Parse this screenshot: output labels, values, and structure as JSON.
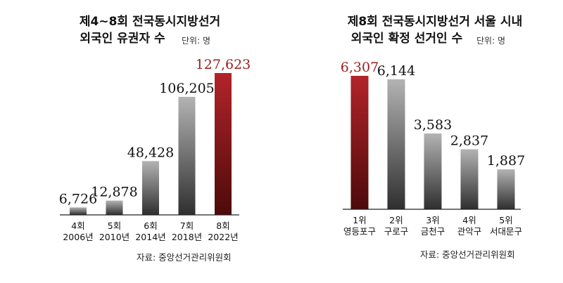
{
  "colors": {
    "highlight": "#9c1c1c",
    "bar_gray": "#8a8a8a",
    "axis": "#222222",
    "text": "#111111"
  },
  "chart_data": [
    {
      "type": "bar",
      "title_lines": [
        "제4~8회 전국동시지방선거",
        "외국인 유권자 수"
      ],
      "unit": "단위: 명",
      "categories": [
        {
          "round": "4회",
          "year": "2006년"
        },
        {
          "round": "5회",
          "year": "2010년"
        },
        {
          "round": "6회",
          "year": "2014년"
        },
        {
          "round": "7회",
          "year": "2018년"
        },
        {
          "round": "8회",
          "year": "2022년"
        }
      ],
      "values": [
        6726,
        12878,
        48428,
        106205,
        127623
      ],
      "value_labels": [
        "6,726",
        "12,878",
        "48,428",
        "106,205",
        "127,623"
      ],
      "highlight_index": 4,
      "ylim": [
        0,
        127623
      ],
      "source": "자료: 중앙선거관리위원회"
    },
    {
      "type": "bar",
      "title_lines": [
        "제8회 전국동시지방선거 서울 시내",
        "외국인 확정 선거인 수"
      ],
      "unit": "단위: 명",
      "categories": [
        {
          "round": "1위",
          "year": "영등포구"
        },
        {
          "round": "2위",
          "year": "구로구"
        },
        {
          "round": "3위",
          "year": "금천구"
        },
        {
          "round": "4위",
          "year": "관악구"
        },
        {
          "round": "5위",
          "year": "서대문구"
        }
      ],
      "values": [
        6307,
        6144,
        3583,
        2837,
        1887
      ],
      "value_labels": [
        "6,307",
        "6,144",
        "3,583",
        "2,837",
        "1,887"
      ],
      "highlight_index": 0,
      "ylim": [
        0,
        6307
      ],
      "source": "자료: 중앙선거관리위원회"
    }
  ]
}
